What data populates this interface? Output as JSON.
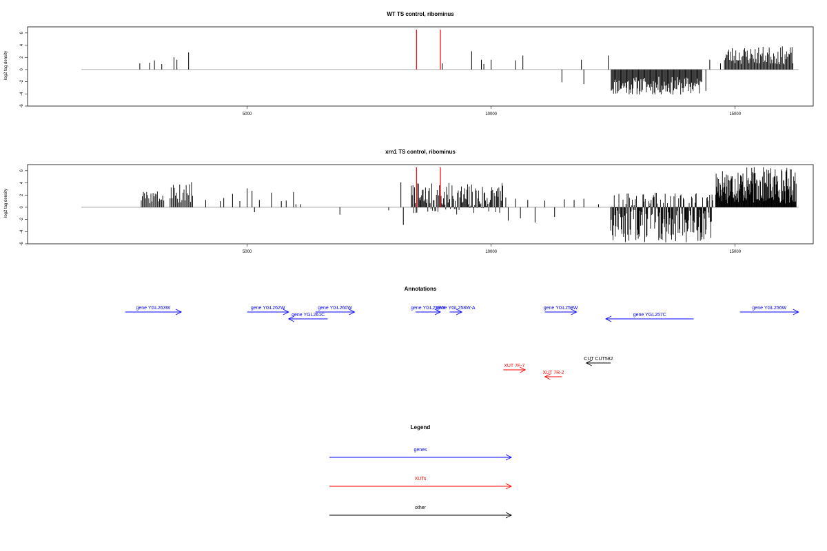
{
  "chart_data": [
    {
      "type": "bar",
      "title": "WT TS control, ribominus",
      "ylabel": "log2 tag density",
      "xlim": [
        500,
        16600
      ],
      "ylim": [
        -6,
        7
      ],
      "x_ticks": [
        5000,
        10000,
        15000
      ],
      "y_ticks": [
        -6,
        -4,
        -2,
        0,
        2,
        4,
        6
      ],
      "baseline": {
        "from": 1600,
        "to": 16300
      },
      "markers": {
        "positions": [
          8470,
          8960
        ],
        "color": "#ff0000"
      },
      "bar_color": "#000000",
      "x": [
        2800,
        3000,
        3100,
        3250,
        3500,
        3560,
        3800,
        9000,
        9600,
        9800,
        9850,
        10000,
        10500,
        10650,
        11450,
        11850,
        11900,
        12400,
        14400,
        14480,
        14700
      ],
      "values": [
        1.0,
        1.1,
        1.5,
        0.9,
        2.0,
        1.6,
        2.8,
        1.0,
        3.0,
        1.6,
        0.9,
        1.6,
        1.5,
        2.3,
        -2.1,
        1.6,
        -2.4,
        2.3,
        -3.5,
        1.6,
        1.0
      ],
      "dense_regions": [
        {
          "from": 12460,
          "to": 14330,
          "min": -4.2,
          "max": -1.2,
          "step": 16,
          "seed": 11
        },
        {
          "from": 14780,
          "to": 16200,
          "min": 0.8,
          "max": 3.8,
          "step": 18,
          "seed": 23
        }
      ]
    },
    {
      "type": "bar",
      "title": "xrn1 TS control, ribominus",
      "ylabel": "log2 tag density",
      "xlim": [
        500,
        16600
      ],
      "ylim": [
        -6,
        7
      ],
      "x_ticks": [
        5000,
        10000,
        15000
      ],
      "y_ticks": [
        -6,
        -4,
        -2,
        0,
        2,
        4,
        6
      ],
      "baseline": {
        "from": 1600,
        "to": 16300
      },
      "markers": {
        "positions": [
          8470,
          8960
        ],
        "color": "#ff0000"
      },
      "bar_color": "#000000",
      "x": [
        4150,
        4450,
        4520,
        4700,
        4850,
        5000,
        5100,
        5150,
        5250,
        5500,
        5700,
        5800,
        5950,
        6000,
        6100,
        6900,
        7900,
        8150,
        8200,
        10300,
        10350,
        10500,
        10600,
        10750,
        10900,
        11100,
        11300,
        11500,
        11700,
        11900,
        12200
      ],
      "values": [
        1.2,
        1.0,
        1.5,
        2.2,
        1.0,
        3.1,
        2.7,
        -0.8,
        1.2,
        2.4,
        1.0,
        1.1,
        2.5,
        0.5,
        0.5,
        -1.2,
        -0.5,
        4.1,
        -2.9,
        1.6,
        -2.2,
        1.4,
        -1.8,
        1.2,
        -2.5,
        1.1,
        -1.6,
        1.3,
        1.2,
        1.4,
        0.5
      ],
      "dense_regions": [
        {
          "from": 2830,
          "to": 3310,
          "min": 0.6,
          "max": 2.8,
          "step": 22,
          "seed": 3
        },
        {
          "from": 3420,
          "to": 3900,
          "min": 0.6,
          "max": 4.2,
          "step": 22,
          "seed": 5
        },
        {
          "from": 8350,
          "to": 10250,
          "min": -1.2,
          "max": 4.0,
          "step": 16,
          "seed": 7
        },
        {
          "from": 12450,
          "to": 14550,
          "min": -5.8,
          "max": 2.4,
          "step": 12,
          "seed": 13
        },
        {
          "from": 14600,
          "to": 16250,
          "min": 0.6,
          "max": 6.6,
          "step": 10,
          "seed": 17
        }
      ]
    }
  ],
  "annotations": {
    "title": "Annotations",
    "items": [
      {
        "label": "gene YGL263W",
        "color": "#0000ff",
        "from": 2500,
        "to": 3650,
        "row": 0,
        "dir": "right"
      },
      {
        "label": "gene YGL262W",
        "color": "#0000ff",
        "from": 5000,
        "to": 5850,
        "row": 0,
        "dir": "right"
      },
      {
        "label": "gene YGL261C",
        "color": "#0000ff",
        "from": 5850,
        "to": 6650,
        "row": 1,
        "dir": "left"
      },
      {
        "label": "gene YGL260W",
        "color": "#0000ff",
        "from": 6400,
        "to": 7200,
        "row": 0,
        "dir": "right"
      },
      {
        "label": "gene YGL259W",
        "color": "#0000ff",
        "from": 8450,
        "to": 8960,
        "row": 0,
        "dir": "right"
      },
      {
        "label": "gene YGL258W-A",
        "color": "#0000ff",
        "from": 9150,
        "to": 9400,
        "row": 0,
        "dir": "right"
      },
      {
        "label": "gene YGL258W",
        "color": "#0000ff",
        "from": 11100,
        "to": 11750,
        "row": 0,
        "dir": "right"
      },
      {
        "label": "gene YGL257C",
        "color": "#0000ff",
        "from": 12350,
        "to": 14150,
        "row": 1,
        "dir": "left"
      },
      {
        "label": "gene YGL256W",
        "color": "#0000ff",
        "from": 15100,
        "to": 16300,
        "row": 0,
        "dir": "right"
      },
      {
        "label": "CUT CUT582",
        "color": "#000000",
        "from": 11950,
        "to": 12450,
        "row": 2,
        "dir": "left"
      },
      {
        "label": "XUT 7F-7",
        "color": "#ff0000",
        "from": 10250,
        "to": 10700,
        "row": 3,
        "dir": "right"
      },
      {
        "label": "XUT 7R-2",
        "color": "#ff0000",
        "from": 11100,
        "to": 11450,
        "row": 4,
        "dir": "left"
      }
    ]
  },
  "legend": {
    "title": "Legend",
    "items": [
      {
        "label": "genes",
        "color": "#0000ff"
      },
      {
        "label": "XUTs",
        "color": "#ff0000"
      },
      {
        "label": "other",
        "color": "#000000"
      }
    ]
  }
}
